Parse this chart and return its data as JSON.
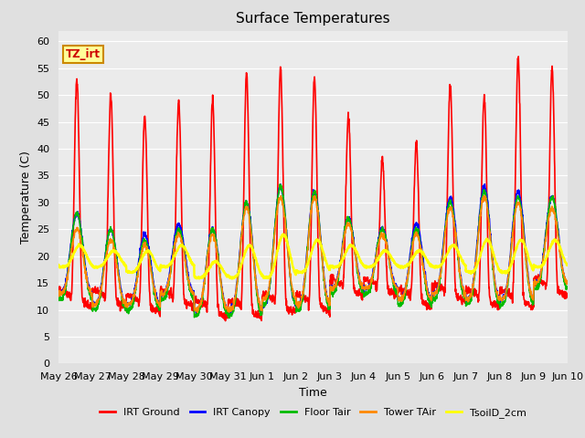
{
  "title": "Surface Temperatures",
  "xlabel": "Time",
  "ylabel": "Temperature (C)",
  "ylim": [
    0,
    62
  ],
  "yticks": [
    0,
    5,
    10,
    15,
    20,
    25,
    30,
    35,
    40,
    45,
    50,
    55,
    60
  ],
  "xtick_labels": [
    "May 26",
    "May 27",
    "May 28",
    "May 29",
    "May 30",
    "May 31",
    "Jun 1",
    "Jun 2",
    "Jun 3",
    "Jun 4",
    "Jun 5",
    "Jun 6",
    "Jun 7",
    "Jun 8",
    "Jun 9",
    "Jun 10"
  ],
  "legend_labels": [
    "IRT Ground",
    "IRT Canopy",
    "Floor Tair",
    "Tower TAir",
    "TsoilD_2cm"
  ],
  "line_colors": [
    "#ff0000",
    "#0000ff",
    "#00bb00",
    "#ff8800",
    "#ffff00"
  ],
  "line_widths": [
    1.2,
    1.2,
    1.2,
    1.2,
    1.8
  ],
  "annotation_text": "TZ_irt",
  "annotation_color": "#cc0000",
  "annotation_bg": "#ffff99",
  "annotation_border": "#cc8800",
  "bg_color": "#e0e0e0",
  "plot_bg_color": "#ebebeb",
  "grid_color": "#ffffff",
  "title_fontsize": 11,
  "label_fontsize": 9,
  "tick_fontsize": 8
}
